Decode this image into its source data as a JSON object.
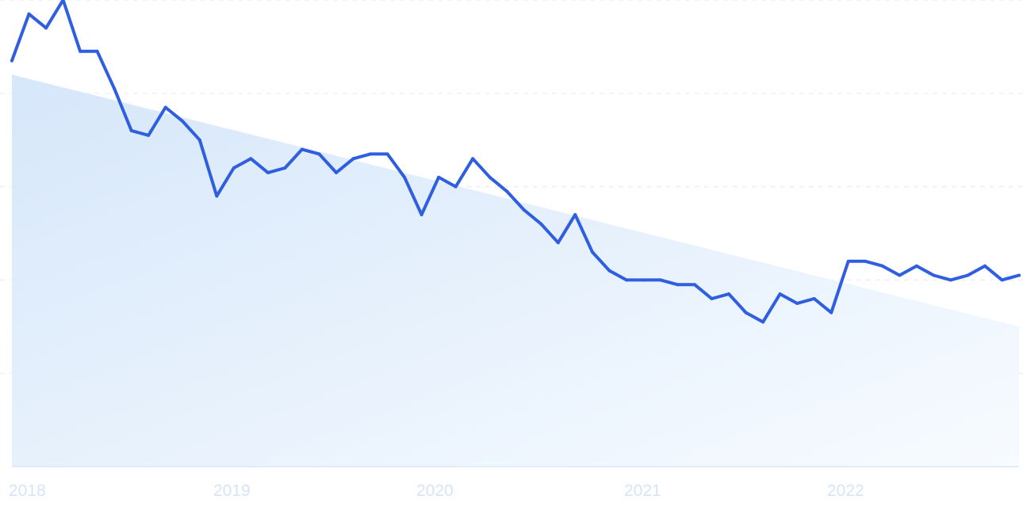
{
  "chart_data": {
    "type": "line",
    "title": "",
    "xlabel": "",
    "ylabel": "",
    "x_tick_labels": [
      "2018",
      "2019",
      "2020",
      "2021",
      "2022"
    ],
    "grid": true,
    "ylim": [
      0,
      100
    ],
    "series": [
      {
        "values": [
          87,
          97,
          94,
          100,
          89,
          89,
          81,
          72,
          71,
          77,
          74,
          70,
          58,
          64,
          66,
          63,
          64,
          68,
          67,
          63,
          66,
          67,
          67,
          62,
          54,
          62,
          60,
          66,
          62,
          59,
          55,
          52,
          48,
          54,
          46,
          42,
          40,
          40,
          40,
          39,
          39,
          36,
          37,
          33,
          31,
          37,
          35,
          36,
          33,
          44,
          44,
          43,
          41,
          43,
          41,
          40,
          41,
          43,
          40,
          41
        ],
        "color": "#2f5fe0"
      },
      {
        "values": [
          84,
          30
        ],
        "color": "#dbe9fa"
      }
    ]
  }
}
